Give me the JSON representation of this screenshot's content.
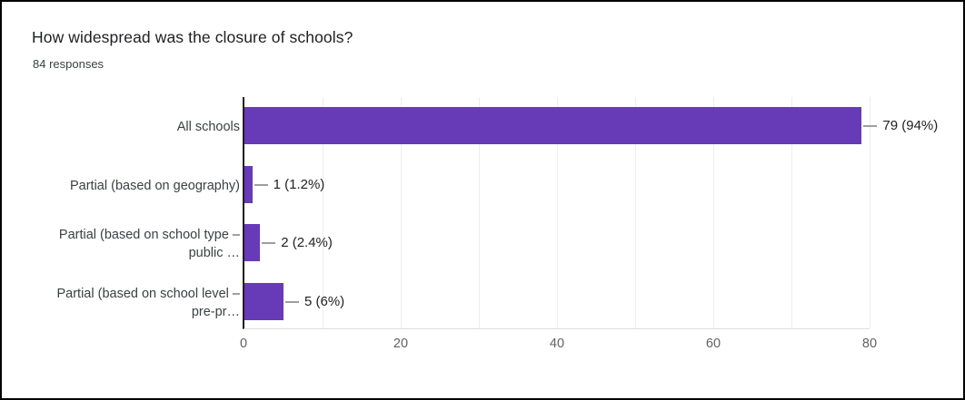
{
  "title": "How widespread was the closure of schools?",
  "subtitle": "84 responses",
  "colors": {
    "bar": "#673ab7",
    "axis": "#1f1f1f",
    "gridline": "#ededed",
    "tick_label": "#616161",
    "text": "#3c4043"
  },
  "chart_data": {
    "type": "bar",
    "orientation": "horizontal",
    "title": "How widespread was the closure of schools?",
    "subtitle": "84 responses",
    "xlim": [
      0,
      80
    ],
    "x_ticks": [
      "0",
      "20",
      "40",
      "60",
      "80"
    ],
    "gridline_interval": 10,
    "legend": false,
    "bars": [
      {
        "category": "All schools",
        "label_lines": [
          "All schools"
        ],
        "value": 79,
        "value_label": "79 (94%)"
      },
      {
        "category": "Partial (based on geography)",
        "label_lines": [
          "Partial (based on geography)"
        ],
        "value": 1,
        "value_label": "1 (1.2%)"
      },
      {
        "category": "Partial (based on school type – public …",
        "label_lines": [
          "Partial (based on school type –",
          "public …"
        ],
        "value": 2,
        "value_label": "2 (2.4%)"
      },
      {
        "category": "Partial (based on school level – pre-pr…",
        "label_lines": [
          "Partial (based on school level –",
          "pre-pr…"
        ],
        "value": 5,
        "value_label": "5 (6%)"
      }
    ]
  }
}
